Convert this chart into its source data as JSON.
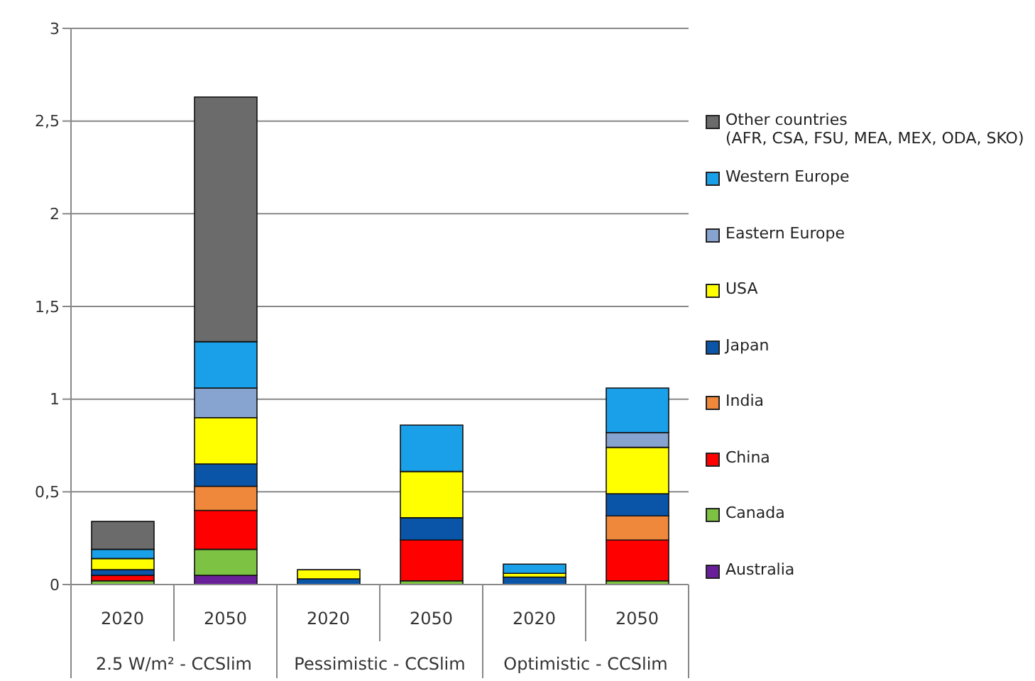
{
  "chart_data": {
    "type": "bar",
    "stacked": true,
    "grid": "y",
    "legend": "right",
    "categories": [
      "2020",
      "2050",
      "2020",
      "2050",
      "2020",
      "2050"
    ],
    "annotations": [
      "2.5 W/m² - CCSlim",
      "Pessimistic - CCSlim",
      "Optimistic - CCSlim"
    ],
    "ylim": [
      0,
      3
    ],
    "yticks": [
      0,
      {
        "value": 0.5,
        "label": "0,5"
      },
      1,
      {
        "value": 1.5,
        "label": "1,5"
      },
      2,
      {
        "value": 2.5,
        "label": "2,5"
      },
      3
    ],
    "series": [
      {
        "name": "Australia",
        "color": "#6a1f9a",
        "values": [
          0,
          0.05,
          0,
          0,
          0,
          0
        ]
      },
      {
        "name": "Canada",
        "color": "#7dc242",
        "values": [
          0.02,
          0.14,
          0,
          0.02,
          0,
          0.02
        ]
      },
      {
        "name": "China",
        "color": "#ff0000",
        "values": [
          0.03,
          0.21,
          0,
          0.22,
          0,
          0.22
        ]
      },
      {
        "name": "India",
        "color": "#f0883c",
        "values": [
          0,
          0.13,
          0,
          0,
          0,
          0.13
        ]
      },
      {
        "name": "Japan",
        "color": "#0a55a8",
        "values": [
          0.03,
          0.12,
          0.03,
          0.12,
          0.04,
          0.12
        ]
      },
      {
        "name": "USA",
        "color": "#ffff00",
        "values": [
          0.06,
          0.25,
          0.05,
          0.25,
          0.02,
          0.25
        ]
      },
      {
        "name": "Eastern Europe",
        "color": "#87a3d0",
        "values": [
          0,
          0.16,
          0,
          0,
          0,
          0.08
        ]
      },
      {
        "name": "Western Europe",
        "color": "#1aa0e8",
        "values": [
          0.05,
          0.25,
          0,
          0.25,
          0.05,
          0.24
        ]
      },
      {
        "name": "Other countries\n(AFR, CSA, FSU, MEA, MEX, ODA, SKO)",
        "color": "#6b6b6b",
        "values": [
          0.15,
          1.32,
          0,
          0,
          0,
          0
        ]
      }
    ]
  }
}
